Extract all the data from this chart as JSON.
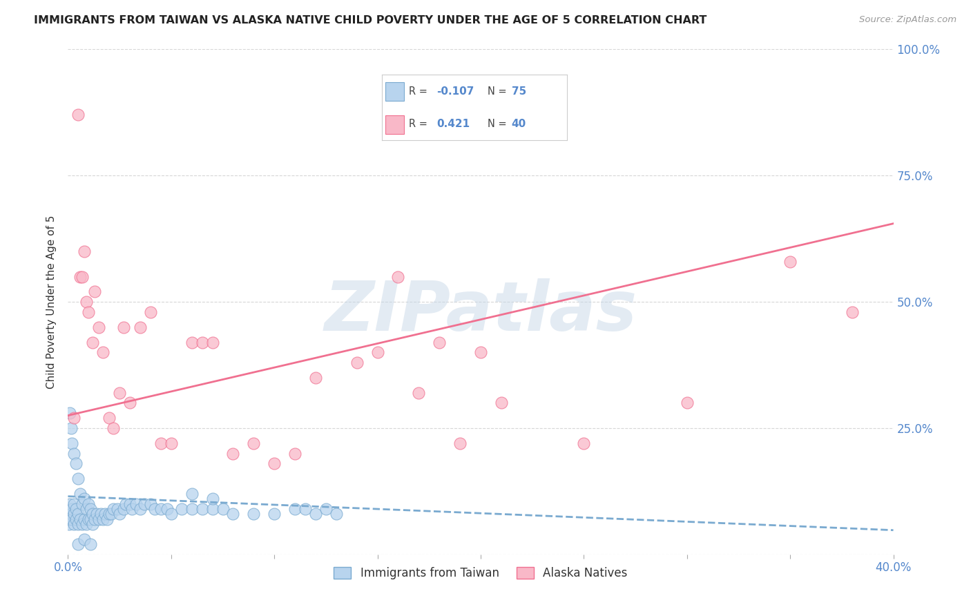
{
  "title": "IMMIGRANTS FROM TAIWAN VS ALASKA NATIVE CHILD POVERTY UNDER THE AGE OF 5 CORRELATION CHART",
  "source": "Source: ZipAtlas.com",
  "ylabel": "Child Poverty Under the Age of 5",
  "legend_label1": "Immigrants from Taiwan",
  "legend_label2": "Alaska Natives",
  "R1": -0.107,
  "N1": 75,
  "R2": 0.421,
  "N2": 40,
  "xlim": [
    0.0,
    0.4
  ],
  "ylim": [
    0.0,
    1.0
  ],
  "color_blue_fill": "#b8d4ee",
  "color_blue_edge": "#7aaad0",
  "color_pink_fill": "#f9b8c8",
  "color_pink_edge": "#f07090",
  "color_blue_line": "#7aaad0",
  "color_pink_line": "#f07090",
  "color_axis_labels": "#5588cc",
  "color_grid": "#cccccc",
  "blue_x": [
    0.0005,
    0.001,
    0.001,
    0.001,
    0.0015,
    0.0015,
    0.002,
    0.002,
    0.002,
    0.003,
    0.003,
    0.003,
    0.003,
    0.004,
    0.004,
    0.004,
    0.005,
    0.005,
    0.005,
    0.006,
    0.006,
    0.007,
    0.007,
    0.008,
    0.008,
    0.009,
    0.009,
    0.01,
    0.01,
    0.011,
    0.011,
    0.012,
    0.012,
    0.013,
    0.014,
    0.015,
    0.016,
    0.017,
    0.018,
    0.019,
    0.02,
    0.021,
    0.022,
    0.024,
    0.025,
    0.027,
    0.028,
    0.03,
    0.031,
    0.033,
    0.035,
    0.037,
    0.04,
    0.042,
    0.045,
    0.048,
    0.05,
    0.055,
    0.06,
    0.065,
    0.07,
    0.075,
    0.08,
    0.09,
    0.1,
    0.11,
    0.115,
    0.12,
    0.125,
    0.13,
    0.005,
    0.008,
    0.011,
    0.06,
    0.07
  ],
  "blue_y": [
    0.06,
    0.07,
    0.1,
    0.28,
    0.08,
    0.25,
    0.07,
    0.09,
    0.22,
    0.06,
    0.08,
    0.1,
    0.2,
    0.07,
    0.09,
    0.18,
    0.06,
    0.08,
    0.15,
    0.07,
    0.12,
    0.06,
    0.1,
    0.07,
    0.11,
    0.06,
    0.09,
    0.07,
    0.1,
    0.07,
    0.09,
    0.06,
    0.08,
    0.07,
    0.08,
    0.07,
    0.08,
    0.07,
    0.08,
    0.07,
    0.08,
    0.08,
    0.09,
    0.09,
    0.08,
    0.09,
    0.1,
    0.1,
    0.09,
    0.1,
    0.09,
    0.1,
    0.1,
    0.09,
    0.09,
    0.09,
    0.08,
    0.09,
    0.09,
    0.09,
    0.09,
    0.09,
    0.08,
    0.08,
    0.08,
    0.09,
    0.09,
    0.08,
    0.09,
    0.08,
    0.02,
    0.03,
    0.02,
    0.12,
    0.11
  ],
  "pink_x": [
    0.003,
    0.005,
    0.006,
    0.007,
    0.008,
    0.009,
    0.01,
    0.012,
    0.013,
    0.015,
    0.017,
    0.02,
    0.022,
    0.025,
    0.027,
    0.03,
    0.035,
    0.04,
    0.045,
    0.05,
    0.06,
    0.065,
    0.07,
    0.08,
    0.09,
    0.1,
    0.11,
    0.12,
    0.14,
    0.15,
    0.16,
    0.17,
    0.18,
    0.19,
    0.2,
    0.21,
    0.25,
    0.3,
    0.35,
    0.38
  ],
  "pink_y": [
    0.27,
    0.87,
    0.55,
    0.55,
    0.6,
    0.5,
    0.48,
    0.42,
    0.52,
    0.45,
    0.4,
    0.27,
    0.25,
    0.32,
    0.45,
    0.3,
    0.45,
    0.48,
    0.22,
    0.22,
    0.42,
    0.42,
    0.42,
    0.2,
    0.22,
    0.18,
    0.2,
    0.35,
    0.38,
    0.4,
    0.55,
    0.32,
    0.42,
    0.22,
    0.4,
    0.3,
    0.22,
    0.3,
    0.58,
    0.48
  ],
  "blue_line_x": [
    0.0,
    0.4
  ],
  "blue_line_y": [
    0.115,
    0.048
  ],
  "pink_line_x": [
    0.0,
    0.4
  ],
  "pink_line_y": [
    0.275,
    0.655
  ],
  "watermark": "ZIPatlas",
  "background_color": "#ffffff"
}
